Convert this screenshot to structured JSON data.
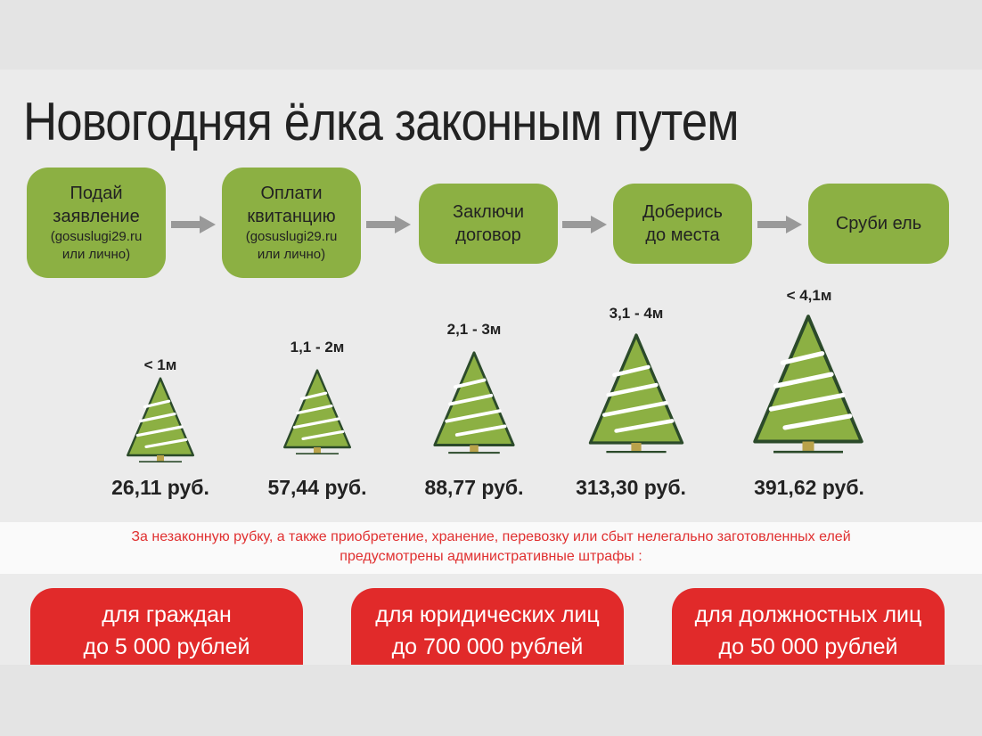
{
  "title": "Новогодняя ёлка законным путем",
  "steps": [
    {
      "line1": "Подай",
      "line2": "заявление",
      "sub1": "(gosuslugi29.ru",
      "sub2": "или лично)"
    },
    {
      "line1": "Оплати",
      "line2": "квитанцию",
      "sub1": "(gosuslugi29.ru",
      "sub2": "или лично)"
    },
    {
      "line1": "Заключи",
      "line2": "договор"
    },
    {
      "line1": "Доберись",
      "line2": "до места"
    },
    {
      "line1": "Сруби ель"
    }
  ],
  "trees": [
    {
      "height": "< 1м",
      "price": "26,11  руб."
    },
    {
      "height": "1,1 - 2м",
      "price": "57,44 руб."
    },
    {
      "height": "2,1 - 3м",
      "price": "88,77 руб."
    },
    {
      "height": "3,1 - 4м",
      "price": "313,30 руб."
    },
    {
      "height": "< 4,1м",
      "price": "391,62 руб."
    }
  ],
  "warning": {
    "line1": "За незаконную рубку, а также приобретение, хранение, перевозку или сбыт нелегально заготовленных елей",
    "line2": "предусмотрены административные штрафы :"
  },
  "fines": [
    {
      "who": "для граждан",
      "amount": "до 5 000 рублей"
    },
    {
      "who": "для юридических лиц",
      "amount": "до 700 000 рублей"
    },
    {
      "who": "для должностных лиц",
      "amount": "до 50 000 рублей"
    }
  ],
  "colors": {
    "step_green": "#8cb043",
    "tree_green": "#8cb043",
    "fine_red": "#e12a2a",
    "warning_red": "#e03030"
  }
}
